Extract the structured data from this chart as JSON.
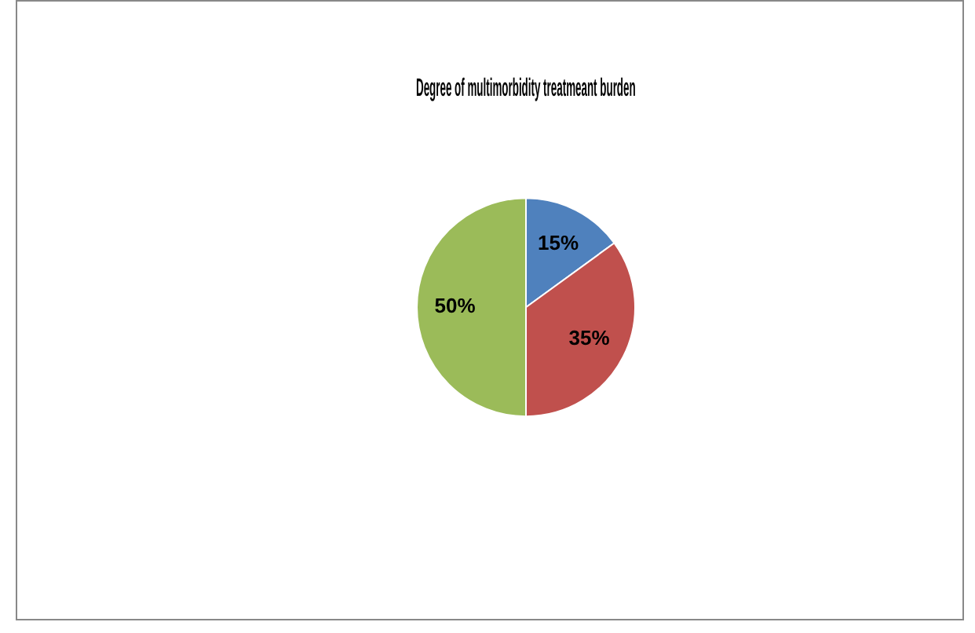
{
  "chart_data": {
    "type": "pie",
    "title": "Degree of multimorbidity treatmeant burden",
    "categories": [
      null,
      null,
      null
    ],
    "values": [
      15,
      35,
      50
    ],
    "colors": [
      "#4f81bd",
      "#c0504d",
      "#9bbb59"
    ],
    "value_labels": [
      "15%",
      "35%",
      "50%"
    ],
    "legend": false
  }
}
